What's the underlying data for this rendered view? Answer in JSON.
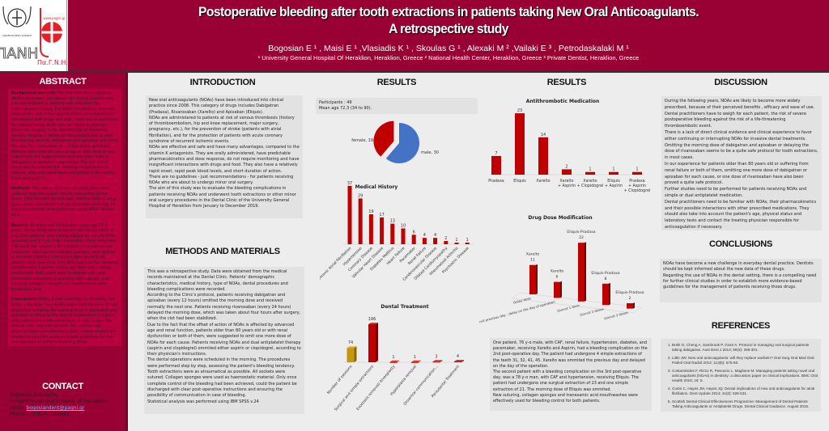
{
  "logos": {
    "left_text": "ΟΔΟΝΤΙΑΤΡΙΚΗ ΚΛΙΝΙΚΗ",
    "left_letters": "ΠΑΝΗ",
    "right_url": "www.pagni.gr",
    "right_text": "Πα.Γ.Ν.Η."
  },
  "header": {
    "title_line1": "Postoperative bleeding after tooth extractions in patients taking New Oral Anticoagulants.",
    "title_line2": "A retrospective study",
    "authors": "Bogosian E ¹ , Maisi E ¹ ,Vlasiadis K ¹ , Skoulas G ¹ , Alexaki M ² ,Vailaki E ³ , Petrodaskalaki M ¹",
    "affiliations": "¹ University General Hospital Of Heraklion, Heraklion, Greece ² National Health Center, Heraklion, Greece ³ Private Dentist, Heraklion, Greece"
  },
  "abstract": {
    "heading": "ABSTRACT",
    "bg_label": "Background and aim:",
    "bg": " The New Oral Anticoagulants (NOAs) have been introduced into clinical practice and are administered to patients with indication for anticoagulant therapy. The NOAs are effective and safe, have predictable anticoagulant effect and insignificant interactions with drugs and food. There are no guidelines for patients taking NOAs who are about to undergo minor oral surgery. In the Dental Clinic of University General Hospital of Heraklion the practice was to omit the morning dose for dabigatran and apixaban and delay the dose for rivaroxaban on the day of the operation. Patients older than 80 years of age or with renal or liver impairment are suggested to omit one more dose of dabigatran or apixaban respectively. The aim of this study was to evaluate the bleeding complications in patients who underwent tooth extractions in the Dental Clinic during 2019.",
    "methods_label": "Methods:",
    "methods": " This was a retrospective study. Data were obtained from the dental records maintained at the Clinic. They included gender, age, medical history, drug type, dental procedures and postoperative bleeding. All statistical controls were performed using SPSS, Version 24.0.",
    "results_label": "Results:",
    "results": " 30 males and 19 females, mean age 72.3 years, taking NOAs were treated in the Dental Clinic. 8 (16,32%) patients were taking dabigatran, 24 (48,97%) apixaban and 17 (34,71%) rivaroxaban. They underwent 196 tooth extractions in 74 sessions. Local hemostatic measures, suturing and collagen sponges, were applied in all cases. Detailed instructions were given to all patients after operation. 2 (4.08%) patients had bleeding complications.1 patient taking apixaban and 1 taking rivaroxaban. Both cases were controlled with local hemostatic measures as pressing with a gauge, new suturing, collagen sponges and mouthwashes with tranexamic acid.",
    "conclusions_label": "Conclusions:",
    "conclusions": " NOAs, a new challenge for Dentistry, are likely to become more widely prescribed because of their properties. Omitting the morning dose of dabigatran and apixaban or delaying the dose of rivaroxaban is a quite safe protocol for tooth extractions, in most cases. The dentist must take into account the patient's age, physical status and laboratory tests. Further studies are needed to establish evidence-based guidelines for the management of patients receiving NOAs."
  },
  "contact": {
    "heading": "CONTACT",
    "name": "Bogosian Evangelia",
    "org": "University General Hospital of Heraklion",
    "email_label": "Email: ",
    "email": "bogosiandent@pagni.gr",
    "phone": "Phone: +306948586683"
  },
  "introduction": {
    "heading": "INTRODUCTION",
    "text": [
      "New oral anticoagulants (NOAs) have been introduced into clinical practice since 2008. This category of drugs includes Dabigatran (Pradaxa), Rivaroxaban (Xarelto) and Apixaban (Eliquis).",
      "NOAs are administered to patients at risk of venous thrombosis (history of thromboembolism, hip and knee replacement, major surgery, pregnancy, etc.), for the prevention of stroke (patients with atrial fibrillation), and for the protection of patients with acute coronary syndrome of recurrent ischemic events.",
      "NOAs are effective and safe and have many advantages, compared to the vitamin K antagonists. They are orally administered, have predictable pharmacokinetics and dose response, do not require monitoring and have insignificant interactions with drugs and food. They also have a relatively rapid onset, rapid peak blood levels, and short duration of action.",
      "There are no guidelines - just recommendations - for patients receiving NOAs who are about to undergo minor oral surgery.",
      "The aim of this study was to evaluate the bleeding complications in patients receiving NOAs and underwent tooth extractions or other minor oral surgery procedures in the Dental Clinic of the University General Hospital of Heraklion from January to December 2019."
    ]
  },
  "methods": {
    "heading": "METHODS AND MATERIALS",
    "text": [
      "This was a retrospective study. Data were obtained from the medical records maintained at the Dental Clinic. Patients' demographic characteristics, medical history, type of NOAs, dental procedures and bleeding complications were recorded.",
      "According to the Clinic's protocol, patients receiving dabigatran and apixaban (every 12 hours) omitted the morning dose and received normally the next one.  Patients receiving rivaroxaban (every 24 hours) delayed the morning dose, which was taken about four hours after surgery, when the clot had been stabilized.",
      "Due to the fact that the offset of action of NOAs is affected by advanced age and renal function, patients older  than 80 years old or with renal dysfunction  or both of them, were suggested to omit one more dose of NOAs for each cause. Patients receiving NOAs and dual antiplatelet therapy (aspirin and clopidogrel) ommited either aspirin or clopidogrel, according to their physician's instructions.",
      "The dental operations were scheduled in the morning. The procedures were performed step by step, assessing the patient's bleeding tendency. Tooth extractions were as atraumatical as possible. All sockets were sutured.  Collagen sponges  were used as haemostatic material. Only once complete control of the bleeding had been achieved, could the patient be discharged with clear post-operative instructions and ensuring the possibility of communication in case of bleeding.",
      "Statistical analysis was performed using IBM SPSS v.24"
    ]
  },
  "results1": {
    "heading": "RESULTS",
    "participants": "Participants : 49",
    "mean_age": "Mean age 72,3 (34 to 90)."
  },
  "results2": {
    "heading": "RESULTS",
    "case_text": [
      "One patient, 76 y-o male, with CAF, renal failure, hypertension, diabetes, and pacemaker, receiving Xarelto and Aspirin, had a bleeding complication on the 2nd post-operative day. The patient had undergone 4 simple extractions of the teeth  31, 32, 41, 45. Xarelto was ommited the previous day and delayed on the day of the operation.",
      "The second patient with a bleeding complication on the 3rd post-operative day, was a 78 y-o man, with CAF and hypertansion, receiving Eliquis. The patient had undergone one surgical extraction of 23 and one simple extraction of 21. The morning dose of Eliquis was ommited.",
      "New suturing, collagen sponges and tranexamic acid mouthwashes were effectively used for bleeding control for both patients."
    ]
  },
  "discussion": {
    "heading": "DISCUSSION",
    "text": [
      "During the following years, NOAs are likely to become more widely prescribed, because of  their perceived benefits , efficacy and ease of use.",
      "Dental practitioners have to weigh for each patient, the risk of severe postoperative bleeding against the risk of a life-threatening thromboembolic event.",
      "There is a lack of direct clinical evidence and clinical experience to favor either continuing or interrupting NOAs for invasive dental treatments.",
      "Omitting the morning dose of dabigatran and apixaban or delaying the dose of rivaroxaban seems to be a quite safe protocol for tooth extractions, in most cases.",
      "In our experience for patients older than 80 years old or suffering from renal failure or both of them, omitting one more dose of dabigatran or apixaban for each cause, or one dose of rivaroxaban have also been proved a quite safe protocol.",
      "Further studies need to be performed for patients receiving NOAs and simple or dual antiplatelet medication.",
      "Dental practitioners need to be familiar with NOAs, their pharmacokinetics and their possible interactions with other prescribed medications. They should also take into account the patient's age, physical status and laboratory tests and contact the treating physician responsible for anticoagulation if necessary."
    ]
  },
  "conclusions": {
    "heading": "CONCLUSIONS",
    "text": [
      "NOAs have become a new challenge in everyday dental practice.  Dentists should be kept informed about the new data of these drugs.",
      "Regarding the use of NOAs in the dental setting, there is a compelling need for further clinical studies in order to establish more evidence-based guidelines for the management of patients receiving those drugs."
    ]
  },
  "references": {
    "heading": "REFERENCES",
    "items": [
      "Brelk O, Cheng A, Sambrook P, Goss A: Protocol in managing oral surgical patients taking dabigatran. Aust Dent J 2014; 59(3): 296-301.",
      "Little JW: New oral anticoagulants: will they replace warfarin? Oral Surg Oral Med Oral Pathol Oral Radiol 2012; 113(5): 575-80.",
      "Costantinides F, Rizzo R, Pascazio L, Maglione M: Managing patients taking novel oral anticoagulants (NOAs) in dentistry: a discussion paper on clinical implications. BMC Oral Health 2016; 16: 5.",
      "Curtin C, Hayes JM, Hayes JQ: Dental implications of new oral anticoagulants for atrial fibrillation. Dent Update 2014; 41(6): 526-531.",
      "Scottish Dental Clinical Effectiveness Programme: Management of Dental Patients Taking Anticoagulants or Antiplatelet Drugs. Dental Clinical Guidance. August 2015."
    ]
  },
  "colors": {
    "brand": "#990033",
    "bar": "#c00000",
    "bar_gold": "#c8960c",
    "male": "#4472c4",
    "female": "#c00000"
  },
  "chart_data": [
    {
      "type": "pie",
      "categories": [
        "male",
        "female"
      ],
      "values": [
        30,
        19
      ],
      "labels": [
        "male, 30",
        "female, 19"
      ],
      "colors": [
        "#4472c4",
        "#c00000"
      ]
    },
    {
      "type": "bar",
      "title": "Medical History",
      "categories": [
        "Chronic Atrial Fibrillation",
        "Hypertension",
        "Coronary Disease",
        "Valvular Heart Disease",
        "Diabetes Mellitus",
        "Heart Failure",
        "Pacemaker",
        "Renal Failure",
        "Cerebrovascular Disease",
        "Dilated Cardiomyopathy",
        "Rheumatoid Arthritis",
        "Psychiatric Disease"
      ],
      "values": [
        37,
        29,
        19,
        17,
        13,
        10,
        6,
        4,
        4,
        2,
        1,
        1
      ]
    },
    {
      "type": "bar",
      "title": "Dental Treatment",
      "categories": [
        "Number of sessions",
        "Surgical and simple extractions",
        "Exostosis removal/ Alveoplasty",
        "Hyperplasia removal",
        "Oroantral communication...",
        "Periodontal Treatment"
      ],
      "values": [
        74,
        196,
        1,
        1,
        3,
        4
      ]
    },
    {
      "type": "bar",
      "title": "Antithrombotic  Medication",
      "categories": [
        "Pradaxa",
        "Eliquis",
        "Xarelto",
        "Xarelto + Aspirin",
        "Xarelto + Clopidogrel",
        "Eliquis + Aspirin",
        "Pradaxa + Aspirin + Clopidogrel"
      ],
      "values": [
        7,
        23,
        14,
        2,
        1,
        1,
        1
      ]
    },
    {
      "type": "bar",
      "title": "Drug Dose Modification",
      "categories": [
        "Delay dose",
        "Ommit previous day - delay on the day of operation",
        "Ommit 1 dose",
        "Ommit 2 doses",
        "Ommit 3 doses"
      ],
      "series_labels": [
        "Xarelto",
        "Xarelto",
        "Eliquis-Pradaxa",
        "Eliquis-Pradaxa",
        "Eliquis-Pradaxa"
      ],
      "values": [
        11,
        6,
        22,
        8,
        2
      ]
    }
  ]
}
